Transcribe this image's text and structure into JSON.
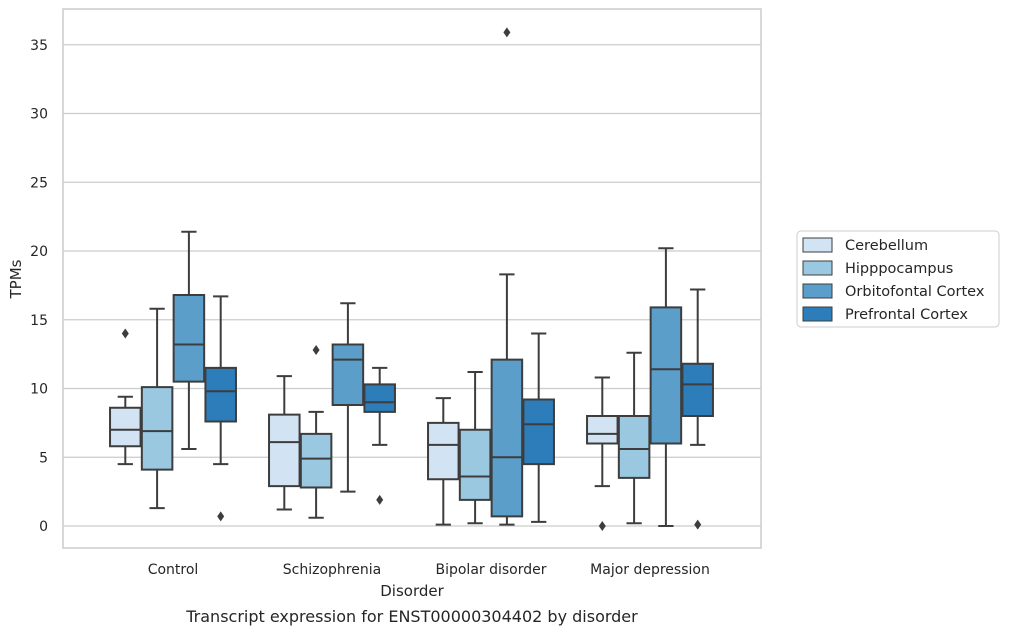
{
  "chart_data": {
    "type": "box",
    "title": "Transcript expression for ENST00000304402 by disorder",
    "xlabel": "Disorder",
    "ylabel": "TPMs",
    "ylim": [
      -1.6,
      37.6
    ],
    "yticks": [
      0,
      5,
      10,
      15,
      20,
      25,
      30,
      35
    ],
    "grid": true,
    "legend_position": "right",
    "categories": [
      "Control",
      "Schizophrenia",
      "Bipolar disorder",
      "Major depression"
    ],
    "series": [
      {
        "name": "Cerebellum",
        "color": "#d2e3f3",
        "boxes": [
          {
            "whislo": 4.5,
            "q1": 5.8,
            "med": 7.0,
            "q3": 8.6,
            "whishi": 9.4,
            "fliers": [
              14.0
            ]
          },
          {
            "whislo": 1.2,
            "q1": 2.9,
            "med": 6.1,
            "q3": 8.1,
            "whishi": 10.9,
            "fliers": []
          },
          {
            "whislo": 0.1,
            "q1": 3.4,
            "med": 5.9,
            "q3": 7.5,
            "whishi": 9.3,
            "fliers": []
          },
          {
            "whislo": 2.9,
            "q1": 6.0,
            "med": 6.7,
            "q3": 8.0,
            "whishi": 10.8,
            "fliers": [
              0.0
            ]
          }
        ]
      },
      {
        "name": "Hipppocampus",
        "color": "#9ac8e0",
        "boxes": [
          {
            "whislo": 1.3,
            "q1": 4.1,
            "med": 6.9,
            "q3": 10.1,
            "whishi": 15.8,
            "fliers": []
          },
          {
            "whislo": 0.6,
            "q1": 2.8,
            "med": 4.9,
            "q3": 6.7,
            "whishi": 8.3,
            "fliers": [
              12.8
            ]
          },
          {
            "whislo": 0.2,
            "q1": 1.9,
            "med": 3.6,
            "q3": 7.0,
            "whishi": 11.2,
            "fliers": []
          },
          {
            "whislo": 0.2,
            "q1": 3.5,
            "med": 5.6,
            "q3": 8.0,
            "whishi": 12.6,
            "fliers": []
          }
        ]
      },
      {
        "name": "Orbitofontal Cortex",
        "color": "#5a9ec9",
        "boxes": [
          {
            "whislo": 5.6,
            "q1": 10.5,
            "med": 13.2,
            "q3": 16.8,
            "whishi": 21.4,
            "fliers": []
          },
          {
            "whislo": 2.5,
            "q1": 8.8,
            "med": 12.1,
            "q3": 13.2,
            "whishi": 16.2,
            "fliers": []
          },
          {
            "whislo": 0.1,
            "q1": 0.7,
            "med": 5.0,
            "q3": 12.1,
            "whishi": 18.3,
            "fliers": [
              35.9
            ]
          },
          {
            "whislo": 0.0,
            "q1": 6.0,
            "med": 11.4,
            "q3": 15.9,
            "whishi": 20.2,
            "fliers": []
          }
        ]
      },
      {
        "name": "Prefrontal Cortex",
        "color": "#2d7dbb",
        "boxes": [
          {
            "whislo": 4.5,
            "q1": 7.6,
            "med": 9.8,
            "q3": 11.5,
            "whishi": 16.7,
            "fliers": [
              0.7
            ]
          },
          {
            "whislo": 5.9,
            "q1": 8.3,
            "med": 9.0,
            "q3": 10.3,
            "whishi": 11.5,
            "fliers": [
              1.9
            ]
          },
          {
            "whislo": 0.3,
            "q1": 4.5,
            "med": 7.4,
            "q3": 9.2,
            "whishi": 14.0,
            "fliers": []
          },
          {
            "whislo": 5.9,
            "q1": 8.0,
            "med": 10.3,
            "q3": 11.8,
            "whishi": 17.2,
            "fliers": [
              0.1
            ]
          }
        ]
      }
    ]
  },
  "colors": {
    "grid": "#cccccc",
    "frame": "#cccccc",
    "box_edge": "#3d3d3d",
    "text": "#262626"
  }
}
